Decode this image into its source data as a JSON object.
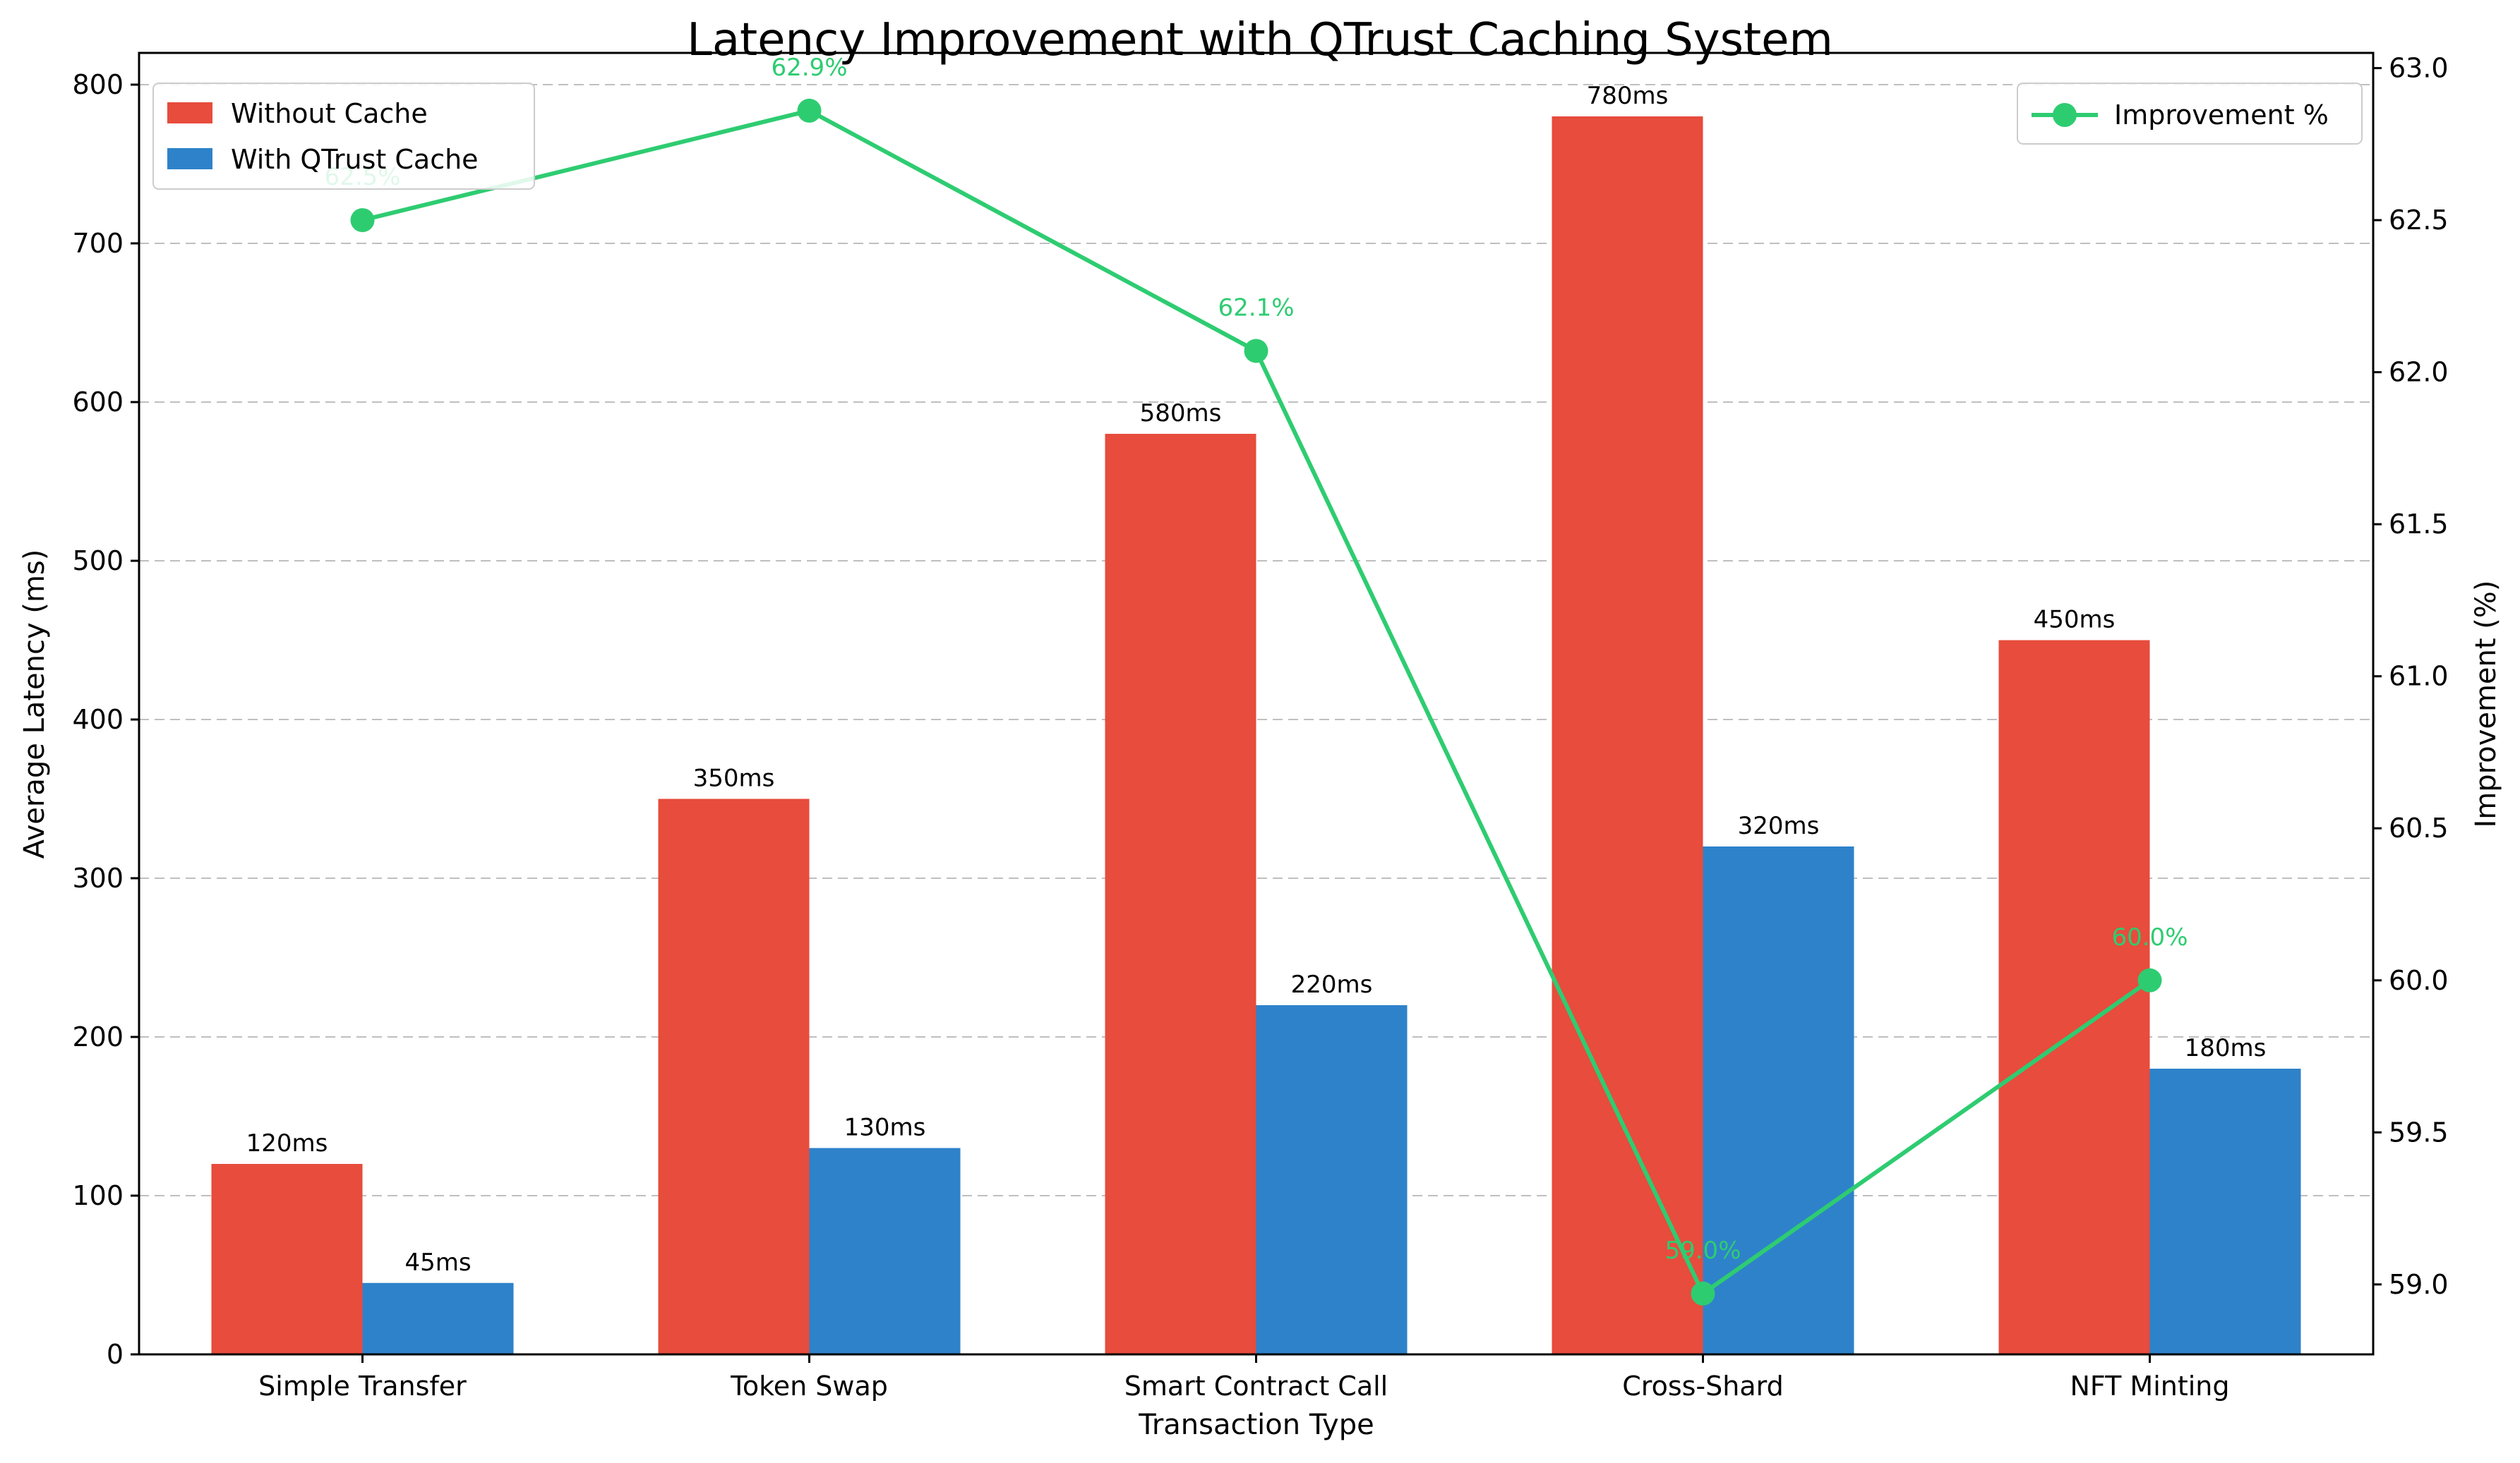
{
  "chart_data": {
    "type": "bar",
    "title": "Latency Improvement with QTrust Caching System",
    "xlabel": "Transaction Type",
    "ylabel": "Average Latency (ms)",
    "ylabel_right": "Improvement (%)",
    "categories": [
      "Simple Transfer",
      "Token Swap",
      "Smart Contract Call",
      "Cross-Shard",
      "NFT Minting"
    ],
    "series": [
      {
        "name": "Without Cache",
        "values": [
          120,
          350,
          580,
          780,
          450
        ],
        "color": "#e74c3c",
        "labels": [
          "120ms",
          "350ms",
          "580ms",
          "780ms",
          "450ms"
        ]
      },
      {
        "name": "With QTrust Cache",
        "values": [
          45,
          130,
          220,
          320,
          180
        ],
        "color": "#2e82ca",
        "labels": [
          "45ms",
          "130ms",
          "220ms",
          "320ms",
          "180ms"
        ]
      }
    ],
    "line_series": {
      "name": "Improvement %",
      "values": [
        62.5,
        62.86,
        62.07,
        58.97,
        60.0
      ],
      "labels": [
        "62.5%",
        "62.9%",
        "62.1%",
        "59.0%",
        "60.0%"
      ],
      "color": "#2ecc71",
      "axis": "right"
    },
    "ylim": [
      0,
      820
    ],
    "yticks": [
      "0",
      "100",
      "200",
      "300",
      "400",
      "500",
      "600",
      "700",
      "800"
    ],
    "ylim_right": [
      58.77,
      63.05
    ],
    "yticks_right": [
      "59.0",
      "59.5",
      "60.0",
      "60.5",
      "61.0",
      "61.5",
      "62.0",
      "62.5",
      "63.0"
    ],
    "grid": "horizontal dashed",
    "legend_left": "upper-left",
    "legend_right": "upper-right"
  }
}
